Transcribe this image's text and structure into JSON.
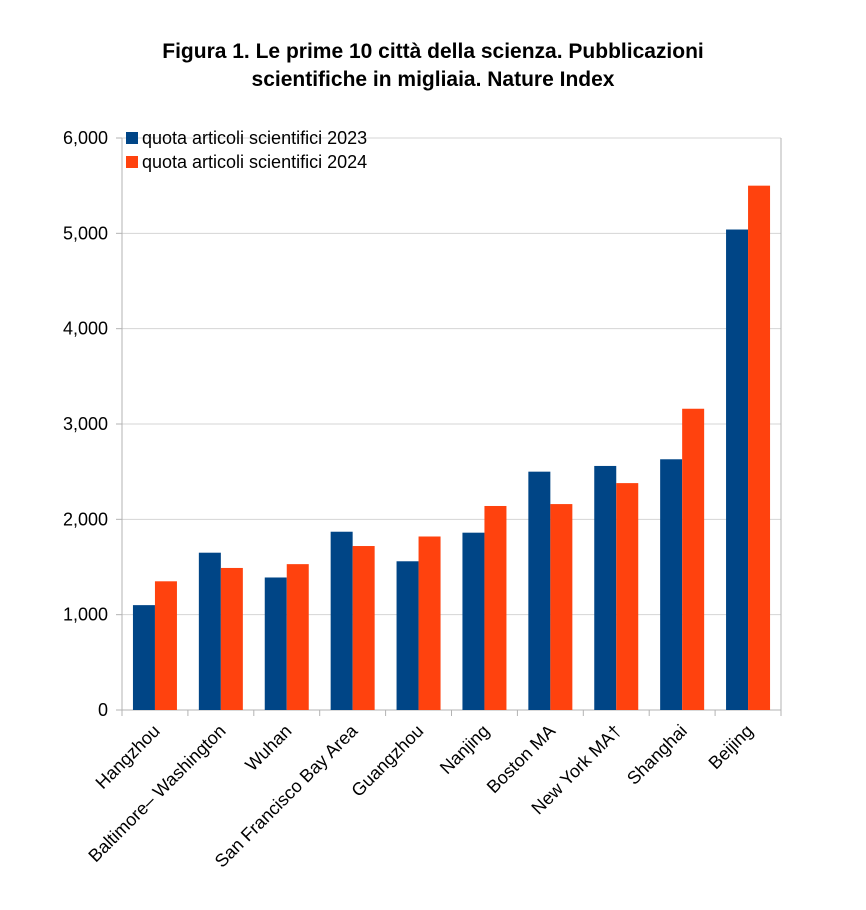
{
  "title_line1": "Figura 1. Le prime 10 città della scienza. Pubblicazioni",
  "title_line2": "scientifiche  in migliaia. Nature Index",
  "colors": {
    "s2023": "#004586",
    "s2024": "#ff420e",
    "grid": "#d4d4d4",
    "axis": "#b3b3b3"
  },
  "chart_data": {
    "type": "bar",
    "title": "Figura 1. Le prime 10 città della scienza. Pubblicazioni scientifiche  in migliaia. Nature Index",
    "categories": [
      "Hangzhou",
      "Baltimore– Washington",
      "Wuhan",
      "San Francisco Bay Area",
      "Guangzhou",
      "Nanjing",
      "Boston MA",
      "New York MA†",
      "Shanghai",
      "Beijing"
    ],
    "series": [
      {
        "name": "quota articoli scientifici 2023",
        "values": [
          1100,
          1650,
          1390,
          1870,
          1560,
          1860,
          2500,
          2560,
          2630,
          5040
        ]
      },
      {
        "name": "quota articoli scientifici 2024",
        "values": [
          1350,
          1490,
          1530,
          1720,
          1820,
          2140,
          2160,
          2380,
          3160,
          5500
        ]
      }
    ],
    "ylim": [
      0,
      6000
    ],
    "yticks": [
      "0",
      "1,000",
      "2,000",
      "3,000",
      "4,000",
      "5,000",
      "6,000"
    ],
    "ytick_values": [
      0,
      1000,
      2000,
      3000,
      4000,
      5000,
      6000
    ],
    "xlabel": "",
    "ylabel": "",
    "grid": true,
    "legend_position": "top-left"
  }
}
